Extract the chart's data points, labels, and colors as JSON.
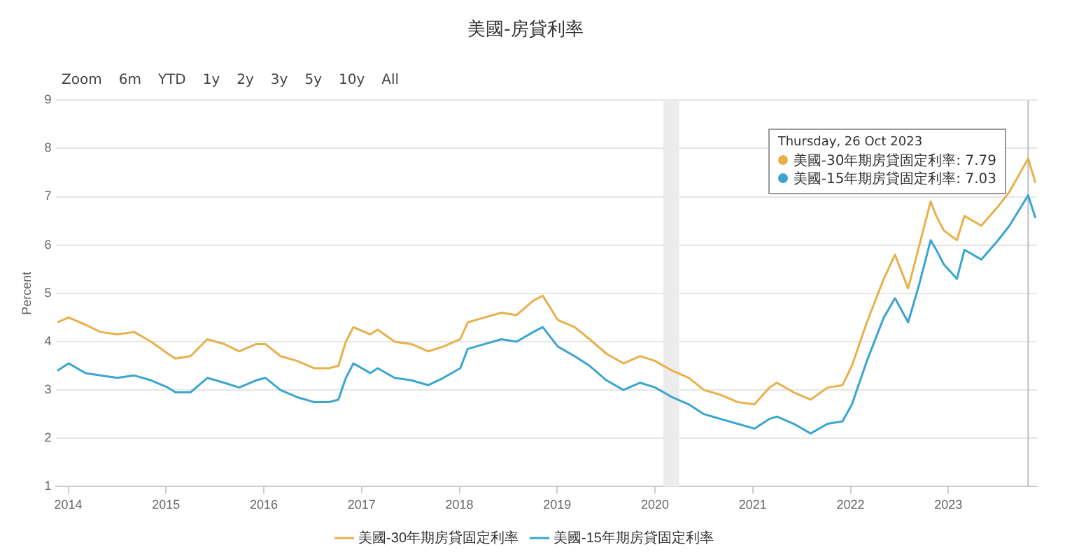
{
  "chart_data": {
    "type": "line",
    "title": "美國-房貸利率",
    "ylabel": "Percent",
    "annotations": [
      "Zoom 6m YTD 1y 2y 3y 5y 10y All",
      "Thursday, 26 Oct 2023",
      "美國-30年期房貸固定利率: 7.79",
      "美國-15年期房貸固定利率: 7.03"
    ],
    "x": [
      "2013-11-21",
      "2014-01-02",
      "2014-03-06",
      "2014-05-01",
      "2014-07-03",
      "2014-09-04",
      "2014-11-06",
      "2015-01-08",
      "2015-02-05",
      "2015-04-02",
      "2015-06-04",
      "2015-08-06",
      "2015-10-01",
      "2015-12-03",
      "2016-01-07",
      "2016-03-03",
      "2016-05-05",
      "2016-07-07",
      "2016-09-01",
      "2016-10-06",
      "2016-11-03",
      "2016-12-01",
      "2017-02-02",
      "2017-03-02",
      "2017-05-04",
      "2017-07-06",
      "2017-09-07",
      "2017-11-02",
      "2018-01-04",
      "2018-02-01",
      "2018-04-05",
      "2018-06-07",
      "2018-08-02",
      "2018-10-04",
      "2018-11-08",
      "2019-01-03",
      "2019-03-07",
      "2019-05-02",
      "2019-07-04",
      "2019-09-05",
      "2019-11-07",
      "2020-01-02",
      "2020-03-05",
      "2020-05-07",
      "2020-07-02",
      "2020-09-03",
      "2020-11-05",
      "2021-01-07",
      "2021-03-04",
      "2021-04-01",
      "2021-06-03",
      "2021-08-05",
      "2021-10-07",
      "2021-12-02",
      "2022-01-06",
      "2022-03-03",
      "2022-05-05",
      "2022-06-16",
      "2022-08-04",
      "2022-09-15",
      "2022-10-27",
      "2022-11-17",
      "2022-12-15",
      "2023-02-02",
      "2023-03-02",
      "2023-05-04",
      "2023-07-06",
      "2023-08-17",
      "2023-10-26",
      "2023-11-22"
    ],
    "series": [
      {
        "name": "美國-30年期房貸固定利率",
        "color": "#e8b04a",
        "values": [
          4.4,
          4.5,
          4.35,
          4.2,
          4.15,
          4.2,
          4.0,
          3.75,
          3.65,
          3.7,
          4.05,
          3.95,
          3.8,
          3.95,
          3.95,
          3.7,
          3.6,
          3.45,
          3.45,
          3.5,
          4.0,
          4.3,
          4.15,
          4.25,
          4.0,
          3.95,
          3.8,
          3.9,
          4.05,
          4.4,
          4.5,
          4.6,
          4.55,
          4.85,
          4.95,
          4.45,
          4.3,
          4.05,
          3.75,
          3.55,
          3.7,
          3.6,
          3.4,
          3.25,
          3.0,
          2.9,
          2.75,
          2.7,
          3.05,
          3.15,
          2.95,
          2.8,
          3.05,
          3.1,
          3.5,
          4.4,
          5.3,
          5.8,
          5.1,
          6.0,
          6.9,
          6.6,
          6.3,
          6.1,
          6.6,
          6.4,
          6.8,
          7.1,
          7.79,
          7.29
        ]
      },
      {
        "name": "美國-15年期房貸固定利率",
        "color": "#3aa5d0",
        "values": [
          3.4,
          3.55,
          3.35,
          3.3,
          3.25,
          3.3,
          3.2,
          3.05,
          2.95,
          2.95,
          3.25,
          3.15,
          3.05,
          3.2,
          3.25,
          3.0,
          2.85,
          2.75,
          2.75,
          2.8,
          3.25,
          3.55,
          3.35,
          3.45,
          3.25,
          3.2,
          3.1,
          3.25,
          3.45,
          3.85,
          3.95,
          4.05,
          4.0,
          4.2,
          4.3,
          3.9,
          3.7,
          3.5,
          3.2,
          3.0,
          3.15,
          3.05,
          2.85,
          2.7,
          2.5,
          2.4,
          2.3,
          2.2,
          2.4,
          2.45,
          2.3,
          2.1,
          2.3,
          2.35,
          2.7,
          3.6,
          4.5,
          4.9,
          4.4,
          5.2,
          6.1,
          5.9,
          5.6,
          5.3,
          5.9,
          5.7,
          6.1,
          6.4,
          7.03,
          6.56
        ]
      }
    ],
    "xlim": [
      "2013-11-15",
      "2023-11-28"
    ],
    "xticks": [
      "2014",
      "2015",
      "2016",
      "2017",
      "2018",
      "2019",
      "2020",
      "2021",
      "2022",
      "2023"
    ],
    "ylim": [
      1,
      9
    ],
    "yticks": [
      1,
      2,
      3,
      4,
      5,
      6,
      7,
      8,
      9
    ],
    "bands": [
      {
        "axis": "x",
        "from": "2020-02",
        "to": "2020-04",
        "color": "#ececec"
      }
    ],
    "ref_lines": [
      {
        "axis": "x",
        "value": "2023-10-26",
        "color": "#bbbbbb"
      }
    ],
    "grid": "y",
    "legend": "bottom",
    "marker": "none",
    "line_style": "solid"
  }
}
